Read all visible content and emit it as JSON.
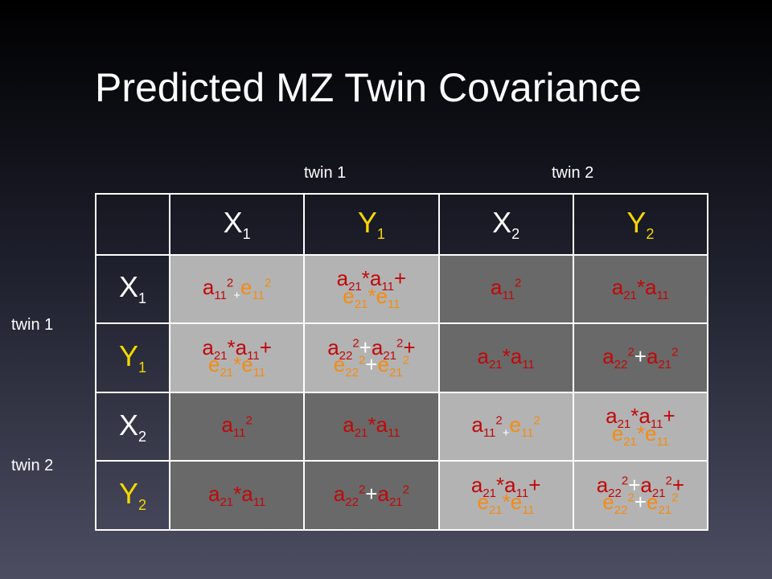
{
  "title": "Predicted MZ Twin Covariance",
  "col_group_labels": [
    "twin 1",
    "twin 2"
  ],
  "row_group_labels": [
    "twin 1",
    "twin 2"
  ],
  "headers": [
    {
      "base": "X",
      "sub": "1"
    },
    {
      "base": "Y",
      "sub": "1"
    },
    {
      "base": "X",
      "sub": "2"
    },
    {
      "base": "Y",
      "sub": "2"
    }
  ],
  "colors": {
    "header_x": "#ffffff",
    "header_y": "#f5d800",
    "cell_light": "#b3b3b3",
    "cell_dark": "#696969",
    "genetic_term": "#c10808",
    "environment_term": "#f28c13"
  },
  "matrix": [
    [
      "a11^2 + e11^2",
      "a21*a11 + e21*e11",
      "a11^2",
      "a21*a11"
    ],
    [
      "a21*a11 + e21*e11",
      "a22^2+a21^2 + e22^2+e21^2",
      "a21*a11",
      "a22^2+a21^2"
    ],
    [
      "a11^2",
      "a21*a11",
      "a11^2 + e11^2",
      "a21*a11 + e21*e11"
    ],
    [
      "a21*a11",
      "a22^2+a21^2",
      "a21*a11 + e21*e11",
      "a22^2+a21^2 + e22^2+e21^2"
    ]
  ]
}
